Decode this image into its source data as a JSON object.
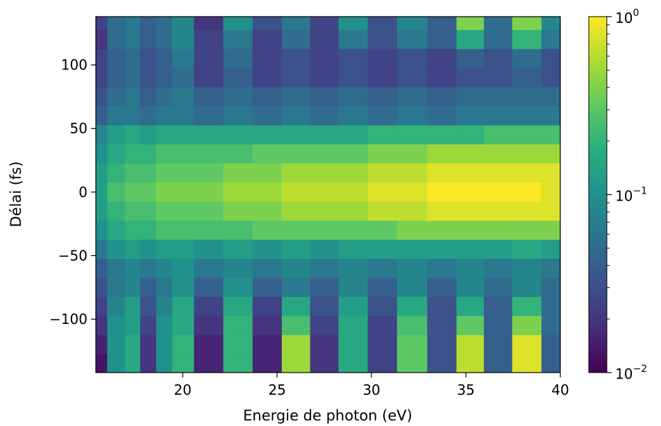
{
  "chart_data": {
    "type": "heatmap",
    "title": "",
    "xlabel": "Energie de photon (eV)",
    "ylabel": "Délai (fs)",
    "xlim": [
      15.4,
      40
    ],
    "ylim": [
      -142,
      138
    ],
    "x_ticks": [
      20,
      25,
      30,
      35,
      40
    ],
    "x_tick_labels": [
      "20",
      "25",
      "30",
      "35",
      "40"
    ],
    "y_ticks": [
      -100,
      -50,
      0,
      50,
      100
    ],
    "y_tick_labels": [
      "−100",
      "−50",
      "0",
      "50",
      "100"
    ],
    "color_scale": "log",
    "colormap": "viridis",
    "colorbar": {
      "range": [
        0.01,
        1
      ],
      "tick_base": "10",
      "ticks": [
        {
          "value": 1,
          "exponent": "0"
        },
        {
          "value": 0.1,
          "exponent": "−1"
        },
        {
          "value": 0.01,
          "exponent": "−2"
        }
      ]
    },
    "x_samples_eV": [
      15.5,
      16.5,
      17.4,
      18.1,
      19.1,
      19.8,
      21.4,
      22.9,
      24.5,
      26.0,
      27.5,
      29.0,
      30.6,
      32.1,
      33.8,
      35.2,
      36.7,
      38.2,
      39.8
    ],
    "delays_fs": [
      135,
      120,
      105,
      90,
      75,
      60,
      45,
      30,
      15,
      0,
      -15,
      -30,
      -45,
      -60,
      -75,
      -90,
      -105,
      -120,
      -135
    ],
    "intensity_log10": [
      [
        -1.6,
        -1.3,
        -1.2,
        -1.4,
        -1.3,
        -1.1,
        -1.7,
        -1.0,
        -1.5,
        -1.2,
        -1.6,
        -1.0,
        -1.5,
        -1.1,
        -1.4,
        -0.4,
        -1.3,
        -0.4,
        -1.1
      ],
      [
        -1.7,
        -1.3,
        -1.2,
        -1.4,
        -1.3,
        -1.1,
        -1.6,
        -1.2,
        -1.6,
        -1.3,
        -1.6,
        -1.2,
        -1.5,
        -1.2,
        -1.4,
        -0.8,
        -1.3,
        -0.7,
        -1.2
      ],
      [
        -1.6,
        -1.4,
        -1.3,
        -1.5,
        -1.4,
        -1.2,
        -1.6,
        -1.3,
        -1.6,
        -1.5,
        -1.6,
        -1.5,
        -1.6,
        -1.5,
        -1.6,
        -1.4,
        -1.5,
        -1.3,
        -1.5
      ],
      [
        -1.6,
        -1.4,
        -1.3,
        -1.5,
        -1.4,
        -1.3,
        -1.6,
        -1.4,
        -1.6,
        -1.5,
        -1.6,
        -1.5,
        -1.6,
        -1.5,
        -1.6,
        -1.5,
        -1.5,
        -1.4,
        -1.5
      ],
      [
        -1.5,
        -1.3,
        -1.2,
        -1.4,
        -1.3,
        -1.2,
        -1.4,
        -1.3,
        -1.4,
        -1.3,
        -1.4,
        -1.3,
        -1.4,
        -1.3,
        -1.4,
        -1.3,
        -1.3,
        -1.3,
        -1.3
      ],
      [
        -1.4,
        -1.2,
        -1.2,
        -1.3,
        -1.2,
        -1.2,
        -1.3,
        -1.2,
        -1.3,
        -1.2,
        -1.3,
        -1.2,
        -1.3,
        -1.2,
        -1.3,
        -1.2,
        -1.2,
        -1.2,
        -1.2
      ],
      [
        -1.1,
        -0.9,
        -0.8,
        -0.9,
        -0.8,
        -0.8,
        -0.8,
        -0.8,
        -0.8,
        -0.8,
        -0.8,
        -0.8,
        -0.7,
        -0.7,
        -0.7,
        -0.7,
        -0.6,
        -0.6,
        -0.6
      ],
      [
        -1.0,
        -0.8,
        -0.7,
        -0.7,
        -0.6,
        -0.6,
        -0.6,
        -0.6,
        -0.5,
        -0.5,
        -0.5,
        -0.5,
        -0.4,
        -0.4,
        -0.3,
        -0.3,
        -0.3,
        -0.3,
        -0.3
      ],
      [
        -0.9,
        -0.7,
        -0.6,
        -0.6,
        -0.5,
        -0.5,
        -0.5,
        -0.4,
        -0.4,
        -0.3,
        -0.3,
        -0.3,
        -0.2,
        -0.2,
        -0.1,
        -0.1,
        -0.1,
        -0.1,
        -0.1
      ],
      [
        -0.9,
        -0.6,
        -0.5,
        -0.5,
        -0.4,
        -0.4,
        -0.4,
        -0.3,
        -0.3,
        -0.2,
        -0.2,
        -0.2,
        -0.1,
        -0.1,
        0.0,
        0.0,
        0.0,
        0.0,
        -0.1
      ],
      [
        -0.9,
        -0.7,
        -0.6,
        -0.6,
        -0.5,
        -0.5,
        -0.5,
        -0.4,
        -0.4,
        -0.3,
        -0.3,
        -0.3,
        -0.2,
        -0.2,
        -0.1,
        -0.1,
        -0.1,
        -0.1,
        -0.1
      ],
      [
        -1.0,
        -0.8,
        -0.7,
        -0.7,
        -0.6,
        -0.6,
        -0.6,
        -0.6,
        -0.5,
        -0.5,
        -0.5,
        -0.5,
        -0.5,
        -0.4,
        -0.4,
        -0.4,
        -0.4,
        -0.4,
        -0.4
      ],
      [
        -1.2,
        -1.0,
        -0.9,
        -1.0,
        -0.9,
        -0.9,
        -1.0,
        -0.9,
        -1.0,
        -0.9,
        -1.0,
        -0.9,
        -0.9,
        -0.9,
        -0.9,
        -0.9,
        -0.9,
        -0.8,
        -0.9
      ],
      [
        -1.4,
        -1.2,
        -1.1,
        -1.2,
        -1.1,
        -1.0,
        -1.2,
        -1.1,
        -1.2,
        -1.1,
        -1.2,
        -1.1,
        -1.2,
        -1.1,
        -1.2,
        -1.1,
        -1.2,
        -1.1,
        -1.2
      ],
      [
        -1.5,
        -1.2,
        -1.1,
        -1.4,
        -1.2,
        -1.0,
        -1.4,
        -1.0,
        -1.4,
        -1.2,
        -1.4,
        -1.1,
        -1.4,
        -1.1,
        -1.4,
        -1.1,
        -1.3,
        -1.1,
        -1.3
      ],
      [
        -1.6,
        -1.1,
        -0.9,
        -1.5,
        -1.1,
        -0.8,
        -1.6,
        -0.8,
        -1.6,
        -0.8,
        -1.5,
        -0.9,
        -1.5,
        -0.8,
        -1.5,
        -0.8,
        -1.4,
        -0.7,
        -1.3
      ],
      [
        -1.7,
        -1.0,
        -0.9,
        -1.6,
        -1.0,
        -0.8,
        -1.7,
        -0.7,
        -1.7,
        -0.6,
        -1.6,
        -0.8,
        -1.6,
        -0.6,
        -1.5,
        -0.5,
        -1.4,
        -0.4,
        -1.3
      ],
      [
        -1.8,
        -1.0,
        -0.8,
        -1.7,
        -1.0,
        -0.7,
        -1.8,
        -0.7,
        -1.8,
        -0.3,
        -1.7,
        -0.8,
        -1.6,
        -0.5,
        -1.5,
        -0.2,
        -1.4,
        -0.1,
        -1.4
      ],
      [
        -1.9,
        -1.0,
        -0.8,
        -1.7,
        -1.0,
        -0.7,
        -1.8,
        -0.7,
        -1.8,
        -0.3,
        -1.7,
        -0.8,
        -1.6,
        -0.5,
        -1.5,
        -0.2,
        -1.4,
        -0.1,
        -1.4
      ]
    ]
  }
}
